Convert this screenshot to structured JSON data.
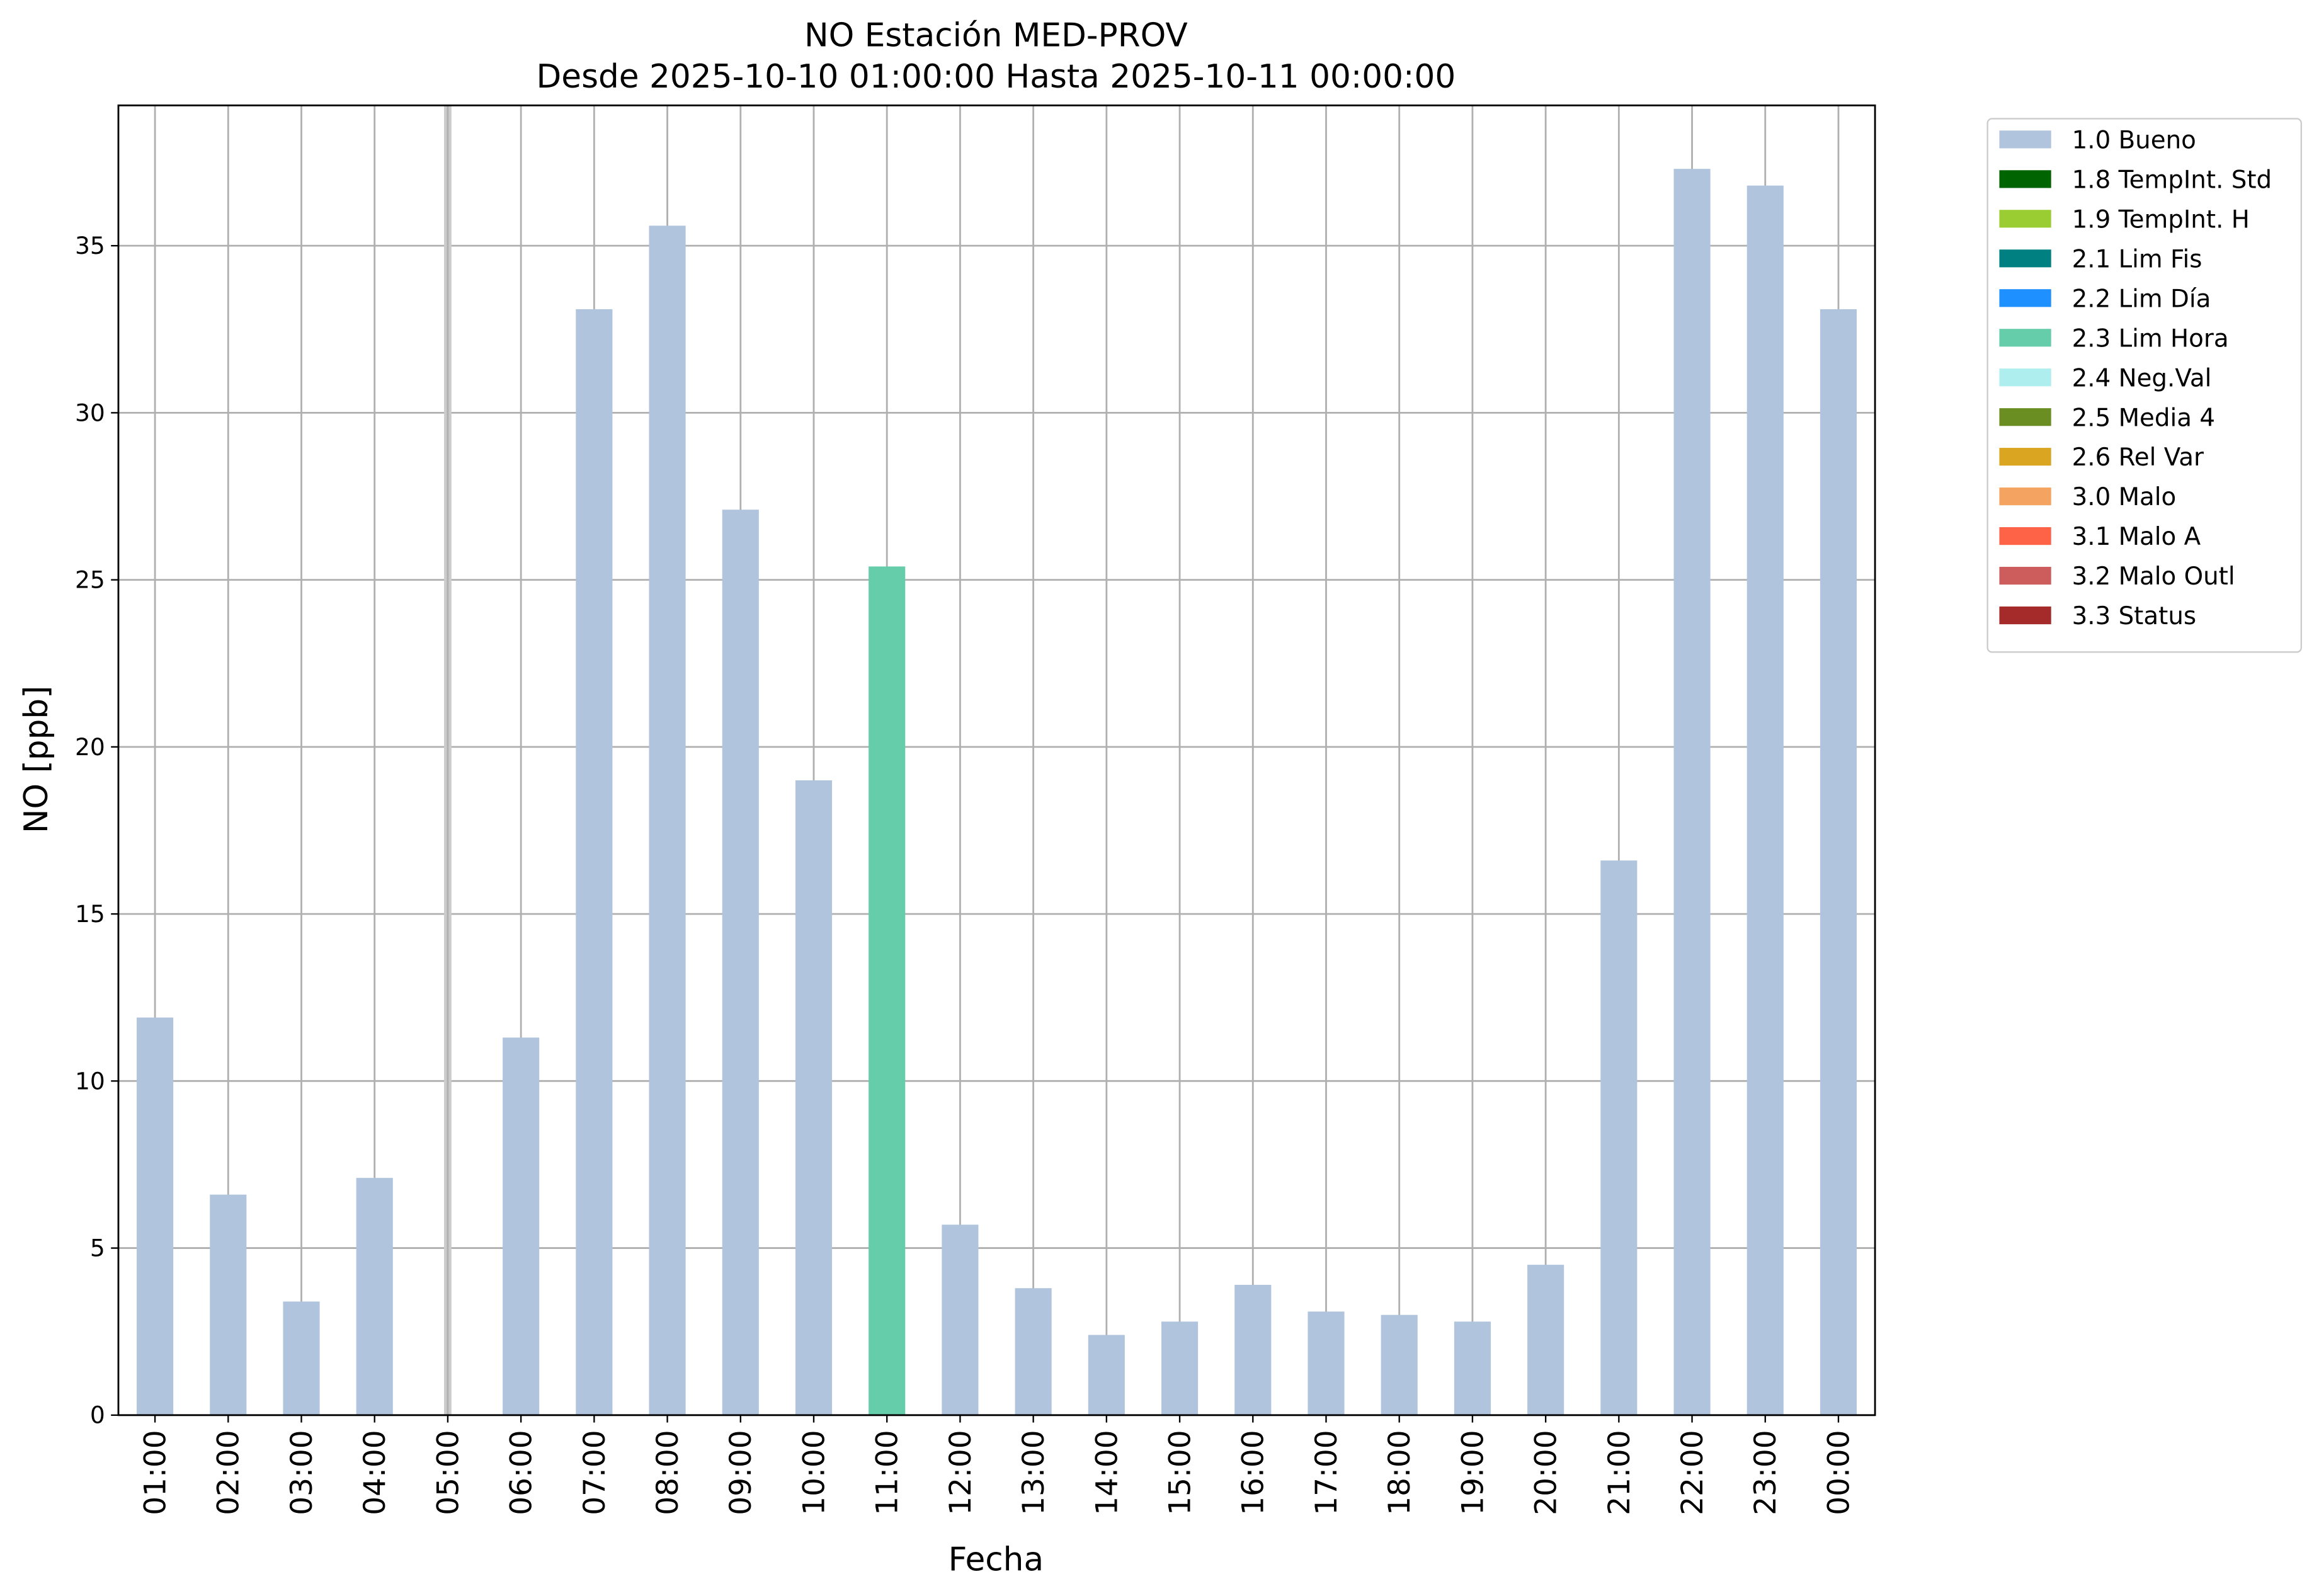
{
  "chart_data": {
    "type": "bar",
    "stacked": true,
    "title": "NO Estación MED-PROV",
    "subtitle": "Desde 2025-10-10 01:00:00 Hasta 2025-10-11 00:00:00",
    "x_label": "Fecha",
    "y_label": "NO [ppb]",
    "categories": [
      "01:00",
      "02:00",
      "03:00",
      "04:00",
      "05:00",
      "06:00",
      "07:00",
      "08:00",
      "09:00",
      "10:00",
      "11:00",
      "12:00",
      "13:00",
      "14:00",
      "15:00",
      "16:00",
      "17:00",
      "18:00",
      "19:00",
      "20:00",
      "21:00",
      "22:00",
      "23:00",
      "00:00"
    ],
    "series": [
      {
        "name": "1.0 Bueno",
        "color": "#b0c4de",
        "values": [
          11.9,
          6.6,
          3.4,
          7.1,
          null,
          11.3,
          33.1,
          35.6,
          27.1,
          19.0,
          null,
          5.7,
          3.8,
          2.4,
          2.8,
          3.9,
          3.1,
          3.0,
          2.8,
          4.5,
          16.6,
          37.3,
          36.8,
          33.1
        ]
      },
      {
        "name": "1.8 TempInt. Std",
        "color": "#006400",
        "values": [
          null,
          null,
          null,
          null,
          null,
          null,
          null,
          null,
          null,
          null,
          null,
          null,
          null,
          null,
          null,
          null,
          null,
          null,
          null,
          null,
          null,
          null,
          null,
          null
        ]
      },
      {
        "name": "1.9 TempInt. H",
        "color": "#9acd32",
        "values": [
          null,
          null,
          null,
          null,
          null,
          null,
          null,
          null,
          null,
          null,
          null,
          null,
          null,
          null,
          null,
          null,
          null,
          null,
          null,
          null,
          null,
          null,
          null,
          null
        ]
      },
      {
        "name": "2.1 Lim Fis",
        "color": "#008080",
        "values": [
          null,
          null,
          null,
          null,
          null,
          null,
          null,
          null,
          null,
          null,
          null,
          null,
          null,
          null,
          null,
          null,
          null,
          null,
          null,
          null,
          null,
          null,
          null,
          null
        ]
      },
      {
        "name": "2.2 Lim Día",
        "color": "#1e90ff",
        "values": [
          null,
          null,
          null,
          null,
          null,
          null,
          null,
          null,
          null,
          null,
          null,
          null,
          null,
          null,
          null,
          null,
          null,
          null,
          null,
          null,
          null,
          null,
          null,
          null
        ]
      },
      {
        "name": "2.3 Lim Hora",
        "color": "#66cdaa",
        "values": [
          null,
          null,
          null,
          null,
          null,
          null,
          null,
          null,
          null,
          null,
          25.4,
          null,
          null,
          null,
          null,
          null,
          null,
          null,
          null,
          null,
          null,
          null,
          null,
          null
        ]
      },
      {
        "name": "2.4 Neg.Val",
        "color": "#afeeee",
        "values": [
          null,
          null,
          null,
          null,
          null,
          null,
          null,
          null,
          null,
          null,
          null,
          null,
          null,
          null,
          null,
          null,
          null,
          null,
          null,
          null,
          null,
          null,
          null,
          null
        ]
      },
      {
        "name": "2.5 Media 4",
        "color": "#6b8e23",
        "values": [
          null,
          null,
          null,
          null,
          null,
          null,
          null,
          null,
          null,
          null,
          null,
          null,
          null,
          null,
          null,
          null,
          null,
          null,
          null,
          null,
          null,
          null,
          null,
          null
        ]
      },
      {
        "name": "2.6 Rel Var",
        "color": "#daa520",
        "values": [
          null,
          null,
          null,
          null,
          null,
          null,
          null,
          null,
          null,
          null,
          null,
          null,
          null,
          null,
          null,
          null,
          null,
          null,
          null,
          null,
          null,
          null,
          null,
          null
        ]
      },
      {
        "name": "3.0 Malo",
        "color": "#f4a460",
        "values": [
          null,
          null,
          null,
          null,
          null,
          null,
          null,
          null,
          null,
          null,
          null,
          null,
          null,
          null,
          null,
          null,
          null,
          null,
          null,
          null,
          null,
          null,
          null,
          null
        ]
      },
      {
        "name": "3.1 Malo A",
        "color": "#ff6347",
        "values": [
          null,
          null,
          null,
          null,
          null,
          null,
          null,
          null,
          null,
          null,
          null,
          null,
          null,
          null,
          null,
          null,
          null,
          null,
          null,
          null,
          null,
          null,
          null,
          null
        ]
      },
      {
        "name": "3.2 Malo Outl",
        "color": "#cd5c5c",
        "values": [
          null,
          null,
          null,
          null,
          null,
          null,
          null,
          null,
          null,
          null,
          null,
          null,
          null,
          null,
          null,
          null,
          null,
          null,
          null,
          null,
          null,
          null,
          null,
          null
        ]
      },
      {
        "name": "3.3 Status",
        "color": "#a52a2a",
        "values": [
          null,
          null,
          null,
          null,
          null,
          null,
          null,
          null,
          null,
          null,
          null,
          null,
          null,
          null,
          null,
          null,
          null,
          null,
          null,
          null,
          null,
          null,
          null,
          null
        ]
      }
    ],
    "ylim": [
      0,
      39.2
    ],
    "yticks": [
      0,
      5,
      10,
      15,
      20,
      25,
      30,
      35
    ],
    "grid": true,
    "legend": "outside-right"
  }
}
